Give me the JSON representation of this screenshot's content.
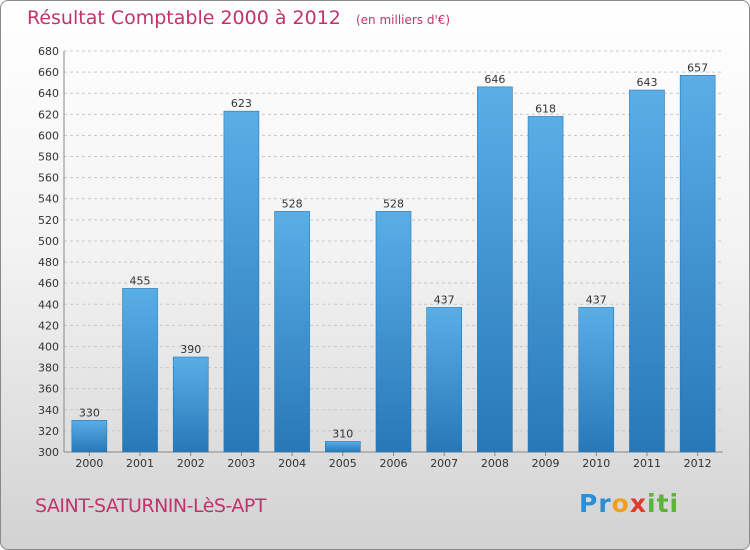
{
  "header": {
    "title": "Résultat Comptable 2000 à 2012",
    "subtitle": "(en milliers d'€)"
  },
  "footer": {
    "city": "SAINT-SATURNIN-LèS-APT",
    "logo_letters": [
      "P",
      "r",
      "o",
      "x",
      "i",
      "t",
      "i"
    ],
    "logo_colors": [
      "#2b8fd6",
      "#2b8fd6",
      "#f0a020",
      "#e03a2a",
      "#5bb43a",
      "#5bb43a",
      "#5bb43a"
    ]
  },
  "chart_data": {
    "type": "bar",
    "title": "Résultat Comptable 2000 à 2012",
    "subtitle": "(en milliers d'€)",
    "xlabel": "",
    "ylabel": "",
    "categories": [
      "2000",
      "2001",
      "2002",
      "2003",
      "2004",
      "2005",
      "2006",
      "2007",
      "2008",
      "2009",
      "2010",
      "2011",
      "2012"
    ],
    "values": [
      330,
      455,
      390,
      623,
      528,
      310,
      528,
      437,
      646,
      618,
      437,
      643,
      657
    ],
    "ylim": [
      300,
      680
    ],
    "ytick_step": 20,
    "grid": true,
    "bar_color_light": "#5aaee6",
    "bar_color_dark": "#2878b8"
  }
}
